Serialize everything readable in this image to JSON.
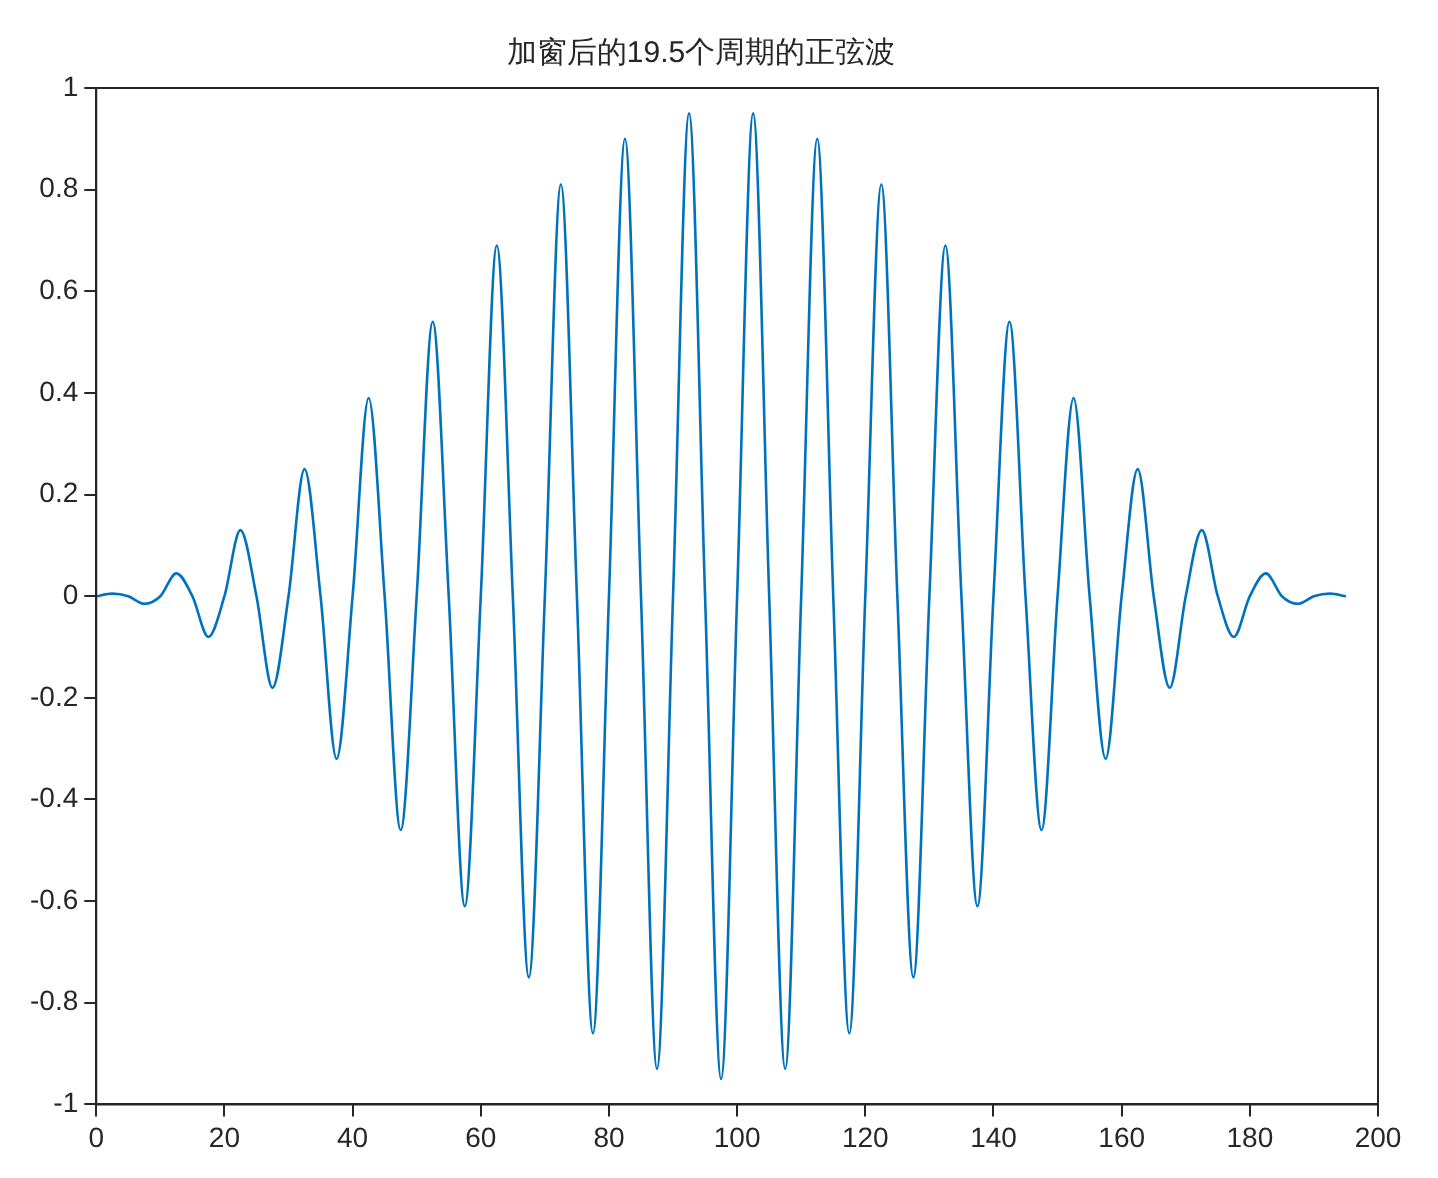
{
  "chart_data": {
    "type": "line",
    "title": "加窗后的19.5个周期的正弦波",
    "x": [
      0,
      2.5,
      5,
      7.5,
      10,
      12.5,
      15,
      17.5,
      20,
      22.5,
      25,
      27.5,
      30,
      32.5,
      35,
      37.5,
      40,
      42.5,
      45,
      47.5,
      50,
      52.5,
      55,
      57.5,
      60,
      62.5,
      65,
      67.5,
      70,
      72.5,
      75,
      77.5,
      80,
      82.5,
      85,
      87.5,
      90,
      92.5,
      95,
      97.5,
      100,
      102.5,
      105,
      107.5,
      110,
      112.5,
      115,
      117.5,
      120,
      122.5,
      125,
      127.5,
      130,
      132.5,
      135,
      137.5,
      140,
      142.5,
      145,
      147.5,
      150,
      152.5,
      155,
      157.5,
      160,
      162.5,
      165,
      167.5,
      170,
      172.5,
      175,
      177.5,
      180,
      182.5,
      185,
      187.5,
      190,
      192.5,
      195
    ],
    "series": [
      {
        "color": "#0072bd",
        "values": [
          0,
          0.005,
          0,
          -0.015,
          0,
          0.045,
          0,
          -0.08,
          0,
          0.13,
          0,
          -0.18,
          0,
          0.25,
          0,
          -0.32,
          0,
          0.39,
          0,
          -0.46,
          0,
          0.54,
          0,
          -0.61,
          0,
          0.69,
          0,
          -0.75,
          0,
          0.81,
          0,
          -0.86,
          0,
          0.9,
          0,
          -0.93,
          0,
          0.95,
          0,
          -0.95,
          0,
          0.95,
          0,
          -0.93,
          0,
          0.9,
          0,
          -0.86,
          0,
          0.81,
          0,
          -0.75,
          0,
          0.69,
          0,
          -0.61,
          0,
          0.54,
          0,
          -0.46,
          0,
          0.39,
          0,
          -0.32,
          0,
          0.25,
          0,
          -0.18,
          0,
          0.13,
          0,
          -0.08,
          0,
          0.045,
          0,
          -0.015,
          0,
          0.005,
          0
        ]
      }
    ],
    "xlim": [
      0,
      200
    ],
    "xticks": [
      0,
      20,
      40,
      60,
      80,
      100,
      120,
      140,
      160,
      180,
      200
    ],
    "ylim": [
      -1,
      1
    ],
    "yticks": [
      -1,
      -0.8,
      -0.6,
      -0.4,
      -0.2,
      0,
      0.2,
      0.4,
      0.6,
      0.8,
      1
    ],
    "grid": false,
    "legend": false
  }
}
